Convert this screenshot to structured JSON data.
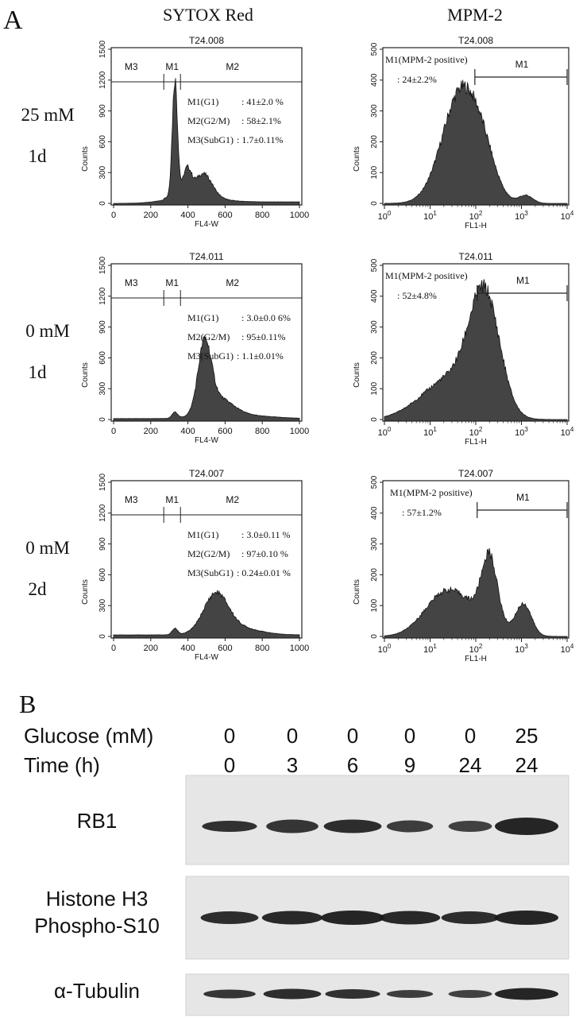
{
  "panel_a": {
    "label": "A",
    "columns": [
      "SYTOX Red",
      "MPM-2"
    ],
    "rows": [
      {
        "condition": "25 mM",
        "duration": "1d",
        "sytox": {
          "title": "T24.008",
          "gates": [
            "M3",
            "M1",
            "M2"
          ],
          "stats": [
            {
              "name": "M1(G1)",
              "value": ": 41±2.0 %"
            },
            {
              "name": "M2(G2/M)",
              "value": ": 58±2.1%"
            },
            {
              "name": "M3(SubG1)",
              "value": ": 1.7±0.11%"
            }
          ]
        },
        "mpm2": {
          "title": "T24.008",
          "gate": "M1",
          "positive_label": "M1(MPM-2 positive)",
          "positive_value": ": 24±2.2%"
        }
      },
      {
        "condition": "0 mM",
        "duration": "1d",
        "sytox": {
          "title": "T24.011",
          "gates": [
            "M3",
            "M1",
            "M2"
          ],
          "stats": [
            {
              "name": "M1(G1)",
              "value": ": 3.0±0.0 6%"
            },
            {
              "name": "M2(G2/M)",
              "value": ": 95±0.11%"
            },
            {
              "name": "M3(SubG1)",
              "value": ": 1.1±0.01%"
            }
          ]
        },
        "mpm2": {
          "title": "T24.011",
          "gate": "M1",
          "positive_label": "M1(MPM-2 positive)",
          "positive_value": ": 52±4.8%"
        }
      },
      {
        "condition": "0 mM",
        "duration": "2d",
        "sytox": {
          "title": "T24.007",
          "gates": [
            "M3",
            "M1",
            "M2"
          ],
          "stats": [
            {
              "name": "M1(G1)",
              "value": ": 3.0±0.11 %"
            },
            {
              "name": "M2(G2/M)",
              "value": ": 97±0.10 %"
            },
            {
              "name": "M3(SubG1)",
              "value": ": 0.24±0.01 %"
            }
          ]
        },
        "mpm2": {
          "title": "T24.007",
          "gate": "M1",
          "positive_label": "M1(MPM-2 positive)",
          "positive_value": ": 57±1.2%"
        }
      }
    ],
    "sytox_axis": {
      "xlabel": "FL4-W",
      "ylabel": "Counts",
      "xticks": [
        "0",
        "200",
        "400",
        "600",
        "800",
        "1000"
      ],
      "yticks": [
        "0",
        "300",
        "600",
        "900",
        "1200",
        "1500"
      ]
    },
    "mpm2_axis": {
      "xlabel": "FL1-H",
      "ylabel": "Counts",
      "xtick_base": "10",
      "xtick_exponents": [
        "0",
        "1",
        "2",
        "3",
        "4"
      ],
      "yticks": [
        "0",
        "100",
        "200",
        "300",
        "400",
        "500"
      ]
    }
  },
  "panel_b": {
    "label": "B",
    "glucose_label": "Glucose (mM)",
    "glucose": [
      "0",
      "0",
      "0",
      "0",
      "0",
      "25"
    ],
    "time_label": "Time (h)",
    "time": [
      "0",
      "3",
      "6",
      "9",
      "24",
      "24"
    ],
    "blots": [
      {
        "labels": [
          "RB1"
        ]
      },
      {
        "labels": [
          "Histone H3",
          "Phospho-S10"
        ]
      },
      {
        "labels": [
          "α-Tubulin"
        ]
      }
    ]
  }
}
